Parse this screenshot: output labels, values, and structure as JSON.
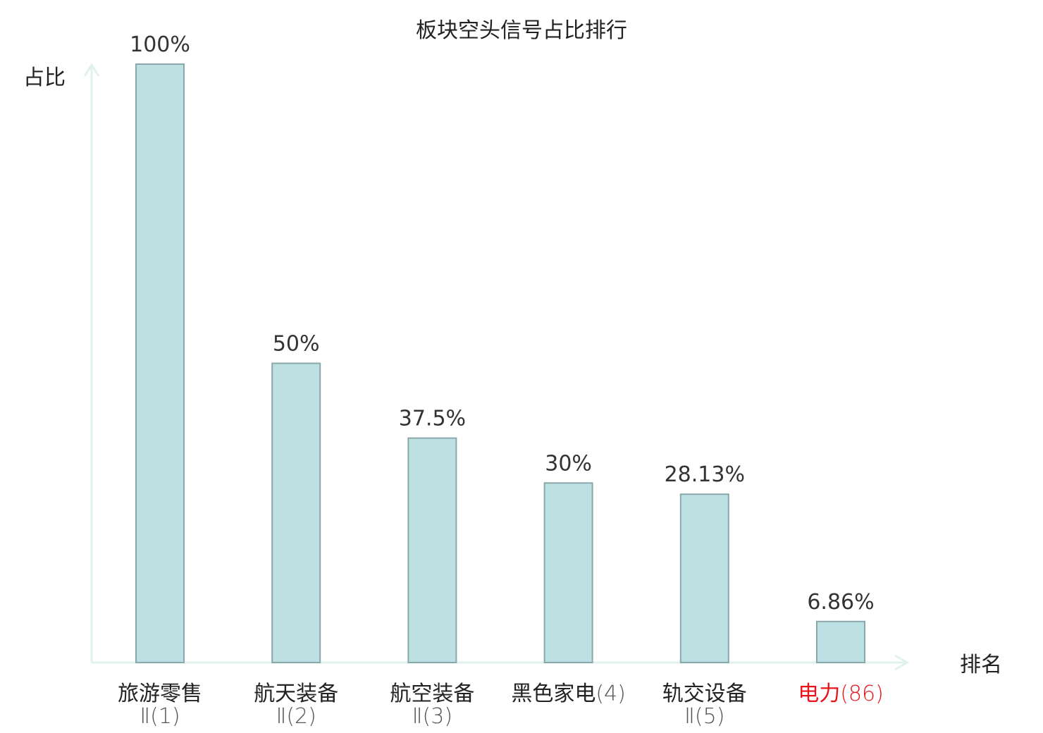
{
  "chart_data": {
    "type": "bar",
    "title": "板块空头信号占比排行",
    "ylabel": "占比",
    "xlabel": "排名",
    "ylim": [
      0,
      100
    ],
    "grid": false,
    "categories": [
      {
        "name": "旅游零售",
        "rank": "Ⅱ(1)",
        "highlight": false
      },
      {
        "name": "航天装备",
        "rank": "Ⅱ(2)",
        "highlight": false
      },
      {
        "name": "航空装备",
        "rank": "Ⅱ(3)",
        "highlight": false
      },
      {
        "name": "黑色家电",
        "rank": "(4)",
        "highlight": false
      },
      {
        "name": "轨交设备",
        "rank": "Ⅱ(5)",
        "highlight": false
      },
      {
        "name": "电力",
        "rank": "(86)",
        "highlight": true
      }
    ],
    "values": [
      100,
      50,
      37.5,
      30,
      28.13,
      6.86
    ],
    "value_labels": [
      "100%",
      "50%",
      "37.5%",
      "30%",
      "28.13%",
      "6.86%"
    ],
    "colors": {
      "bar_fill": "#bde0e2",
      "bar_stroke": "#8aa8ab",
      "axis": "#e0f2ef",
      "text": "#333333",
      "highlight": "#e8141c"
    }
  }
}
